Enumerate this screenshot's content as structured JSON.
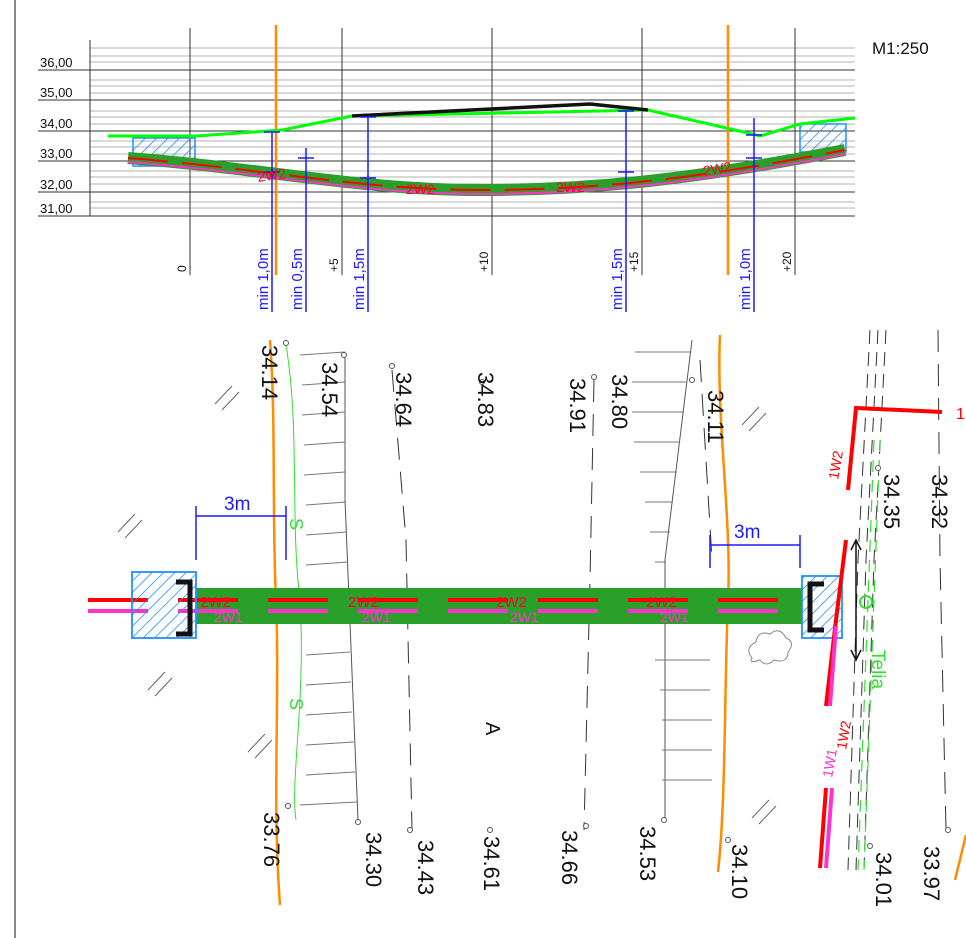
{
  "scale_label": "M1:250",
  "section": {
    "elevation_labels": [
      "36,00",
      "35,00",
      "34,00",
      "33,00",
      "32,00",
      "31,00"
    ],
    "station_labels": [
      "0",
      "+5",
      "+10",
      "+15",
      "+20"
    ],
    "depth_notes": [
      "min 1,0m",
      "min 0,5m",
      "min 1,5m",
      "min 1,5m",
      "min 1,0m"
    ],
    "pipe_labels": [
      "2W2",
      "2W2",
      "2W2",
      "2W2"
    ]
  },
  "plan": {
    "spot_heights_top": [
      "34.14",
      "34.54",
      "34.64",
      "34.83",
      "34.91",
      "34.80",
      "34.11"
    ],
    "spot_heights_bottom": [
      "33.76",
      "34.30",
      "34.43",
      "34.61",
      "34.66",
      "34.53",
      "34.10"
    ],
    "spot_heights_right": [
      "34.35",
      "34.32",
      "34.01",
      "33.97"
    ],
    "dimension_labels": [
      "3m",
      "3m"
    ],
    "pipe_labels": [
      "2W2",
      "2W2",
      "2W2",
      "2W2"
    ],
    "pipe_sublabels": [
      "2W1",
      "2W1",
      "2W1",
      "2W1"
    ],
    "marker_s": [
      "S",
      "S"
    ],
    "area_label": "A",
    "telia_label": "Telia",
    "label_1w2": "1W2",
    "label_1w1": "1W1",
    "label_1w2_b": "1W2",
    "label_1": "1"
  },
  "colors": {
    "grid": "#8a8a8a",
    "ground": "#00ff00",
    "road": "#111111",
    "depth": "#1a1aff",
    "pipe_green": "#2aa02a",
    "pipe_red": "#ff0000",
    "pipe_magenta": "#ff33cc",
    "orange": "#ff8c00",
    "hatch": "#2090ff",
    "telia": "#33dd33"
  }
}
